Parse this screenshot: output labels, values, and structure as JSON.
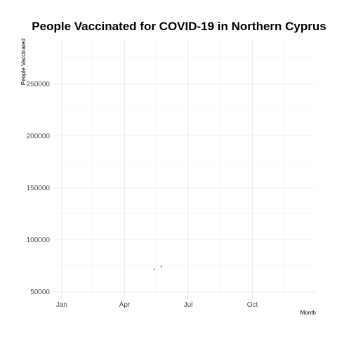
{
  "chart_data": {
    "type": "line",
    "title": "People Vaccinated for COVID-19 in Northern Cyprus",
    "xlabel": "Month",
    "ylabel": "People Vaccinated",
    "x_ticks": [
      {
        "label": "Jan",
        "value": "2021-01-01"
      },
      {
        "label": "Apr",
        "value": "2021-04-01"
      },
      {
        "label": "Jul",
        "value": "2021-07-01"
      },
      {
        "label": "Oct",
        "value": "2021-10-01"
      }
    ],
    "y_ticks": [
      50000,
      100000,
      150000,
      200000,
      250000
    ],
    "xlim": [
      "2020-12-20",
      "2021-12-31"
    ],
    "ylim": [
      43000,
      293000
    ],
    "grid": true,
    "legend": "none",
    "colors": {
      "series": "#000000",
      "grid": "#ebebeb",
      "background": "#ffffff"
    },
    "series": [
      {
        "points": [
          {
            "x": "2021-05-13",
            "y": 71800
          },
          {
            "x": "2021-05-14",
            "y": 72000
          }
        ]
      },
      {
        "points": [
          {
            "x": "2021-05-23",
            "y": 74100
          },
          {
            "x": "2021-05-24",
            "y": 74300
          }
        ]
      }
    ]
  }
}
